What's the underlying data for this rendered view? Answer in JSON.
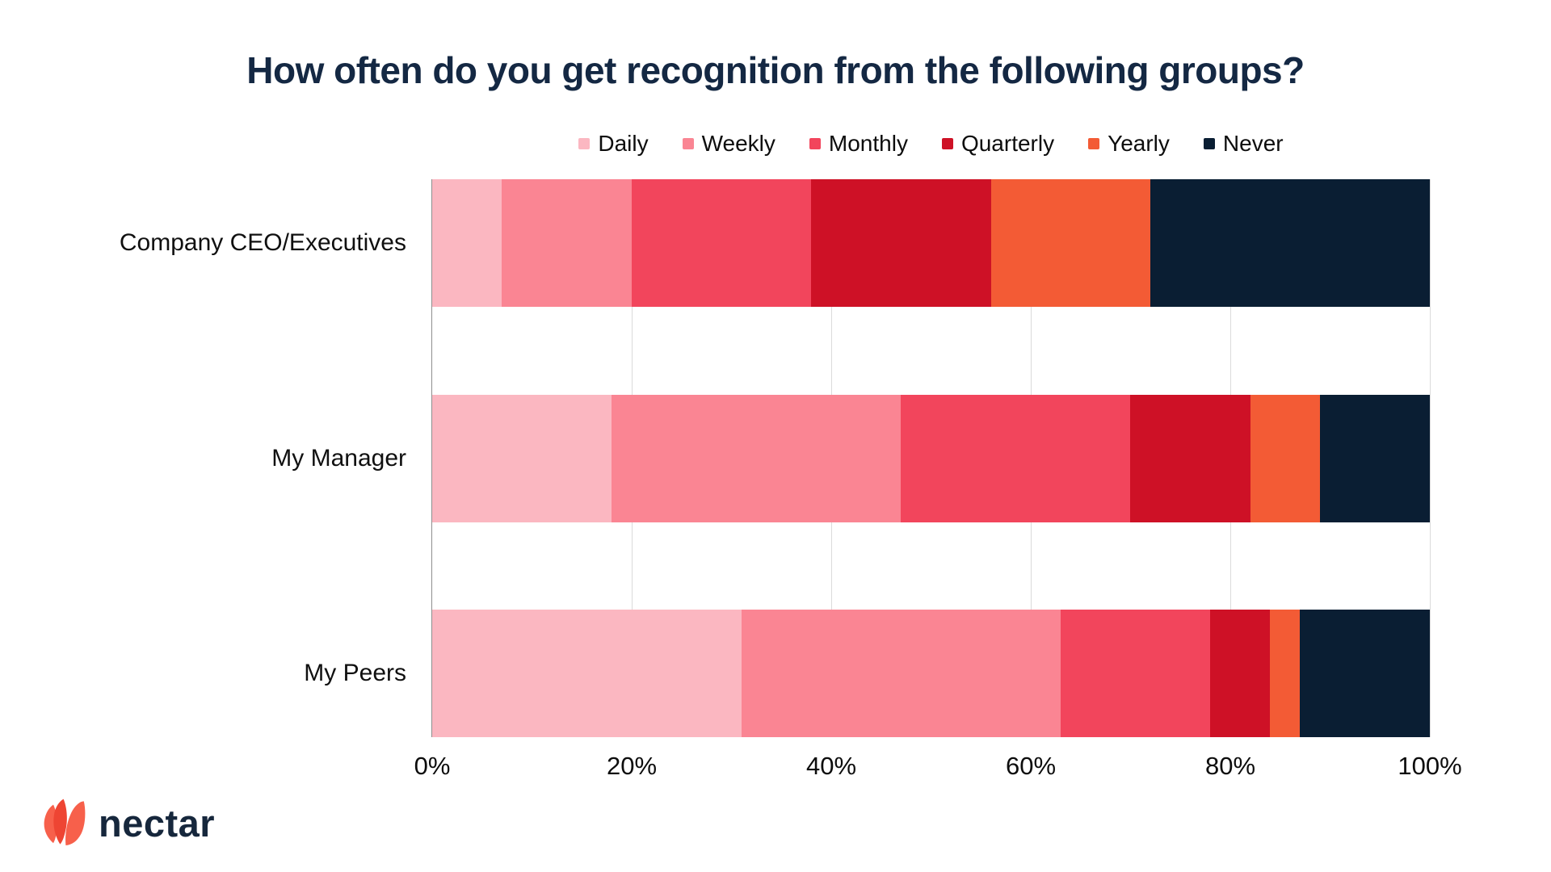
{
  "title": "How often do you get recognition from the following groups?",
  "chart_data": {
    "type": "bar",
    "orientation": "horizontal",
    "stacked": true,
    "title": "How often do you get recognition from the following groups?",
    "categories": [
      "Company CEO/Executives",
      "My Manager",
      "My Peers"
    ],
    "series": [
      {
        "name": "Daily",
        "color": "#FBB7C1",
        "values": [
          7,
          18,
          31
        ]
      },
      {
        "name": "Weekly",
        "color": "#FA8593",
        "values": [
          13,
          29,
          32
        ]
      },
      {
        "name": "Monthly",
        "color": "#F2455C",
        "values": [
          18,
          23,
          15
        ]
      },
      {
        "name": "Quarterly",
        "color": "#CE1126",
        "values": [
          18,
          12,
          6
        ]
      },
      {
        "name": "Yearly",
        "color": "#F35B35",
        "values": [
          16,
          7,
          3
        ]
      },
      {
        "name": "Never",
        "color": "#0A1E33",
        "values": [
          28,
          11,
          13
        ]
      }
    ],
    "x_axis": {
      "range": [
        0,
        100
      ],
      "ticks": [
        {
          "label": "0%",
          "value": 0
        },
        {
          "label": "20%",
          "value": 20
        },
        {
          "label": "40%",
          "value": 40
        },
        {
          "label": "60%",
          "value": 60
        },
        {
          "label": "80%",
          "value": 80
        },
        {
          "label": "100%",
          "value": 100
        }
      ]
    },
    "grid": true,
    "legend_position": "top"
  },
  "logo": {
    "text": "nectar",
    "icon": "nectar-flower-icon"
  },
  "colors": {
    "background": "#FFFFFF",
    "title_text": "#142843",
    "legend_text": "#0D0D0D",
    "axis_text": "#0D0D0D",
    "category_text": "#101010",
    "gridline": "#DBDBDB",
    "axis_line": "#8F8F8F",
    "logo_text": "#16273C",
    "logo_petal_outer": "#F7604B",
    "logo_petal_middle": "#EE4533"
  }
}
